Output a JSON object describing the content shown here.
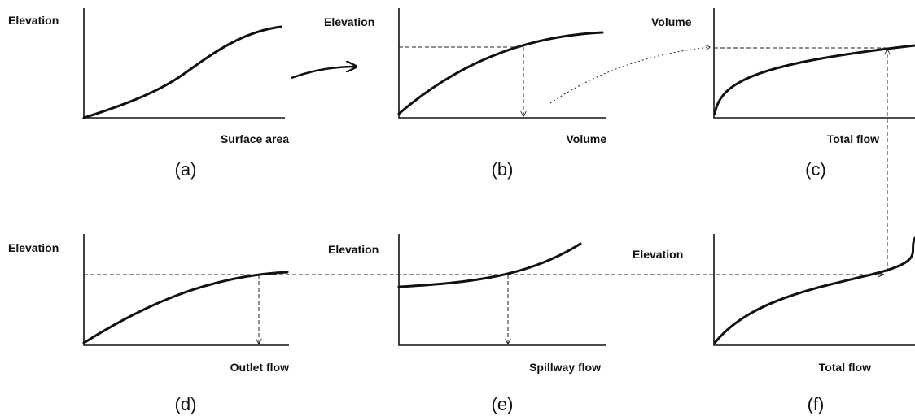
{
  "panels": [
    {
      "y_label": "Elevation",
      "x_label": "Surface area",
      "caption": "(a)"
    },
    {
      "y_label": "Elevation",
      "x_label": "Volume",
      "caption": "(b)"
    },
    {
      "y_label": "Volume",
      "x_label": "Total flow",
      "caption": "(c)"
    },
    {
      "y_label": "Elevation",
      "x_label": "Outlet flow",
      "caption": "(d)"
    },
    {
      "y_label": "Elevation",
      "x_label": "Spillway flow",
      "caption": "(e)"
    },
    {
      "y_label": "Elevation",
      "x_label": "Total flow",
      "caption": "(f)"
    }
  ]
}
